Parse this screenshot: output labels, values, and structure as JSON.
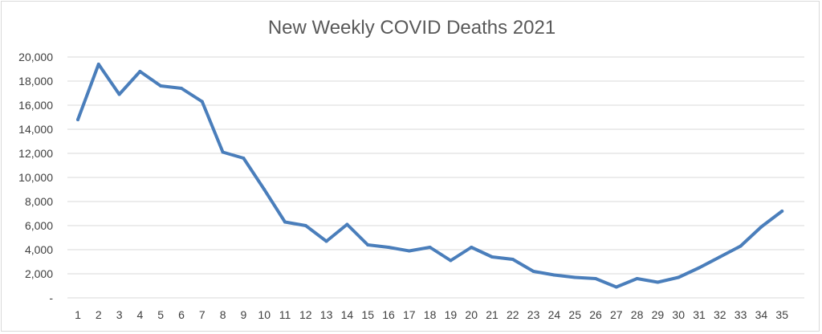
{
  "chart_data": {
    "type": "line",
    "title": "New Weekly COVID Deaths 2021",
    "xlabel": "",
    "ylabel": "",
    "categories": [
      "1",
      "2",
      "3",
      "4",
      "5",
      "6",
      "7",
      "8",
      "9",
      "10",
      "11",
      "12",
      "13",
      "14",
      "15",
      "16",
      "17",
      "18",
      "19",
      "20",
      "21",
      "22",
      "23",
      "24",
      "25",
      "26",
      "27",
      "28",
      "29",
      "30",
      "31",
      "32",
      "33",
      "34",
      "35"
    ],
    "y_ticks": [
      "-",
      "2,000",
      "4,000",
      "6,000",
      "8,000",
      "10,000",
      "12,000",
      "14,000",
      "16,000",
      "18,000",
      "20,000"
    ],
    "ylim": [
      0,
      20000
    ],
    "grid": true,
    "legend": "none",
    "series": [
      {
        "color": "#4a7ebb",
        "values": [
          14800,
          19400,
          16900,
          18800,
          17600,
          17400,
          16300,
          12100,
          11600,
          9000,
          6300,
          6000,
          4700,
          6100,
          4400,
          4200,
          3900,
          4200,
          3100,
          4200,
          3400,
          3200,
          2200,
          1900,
          1700,
          1600,
          900,
          1600,
          1300,
          1700,
          2500,
          3400,
          4300,
          5900,
          7200
        ]
      }
    ]
  }
}
